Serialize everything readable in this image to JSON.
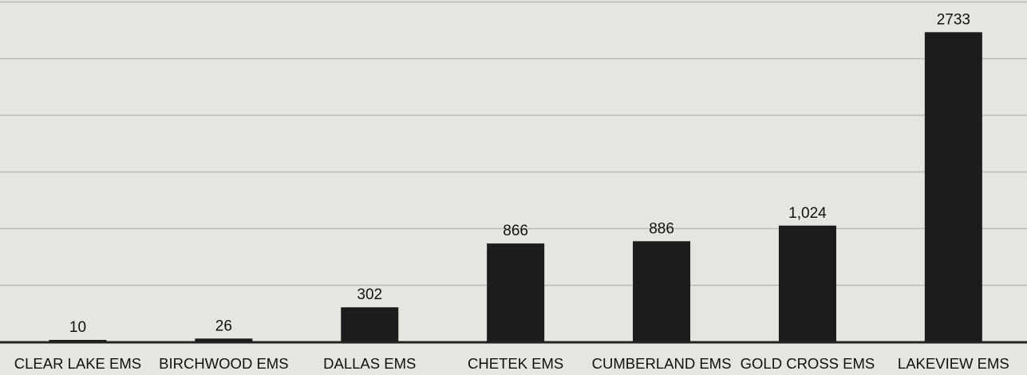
{
  "chart_data": {
    "type": "bar",
    "title": "",
    "xlabel": "",
    "ylabel": "",
    "categories": [
      "CLEAR LAKE EMS",
      "BIRCHWOOD EMS",
      "DALLAS EMS",
      "CHETEK EMS",
      "CUMBERLAND EMS",
      "GOLD CROSS EMS",
      "LAKEVIEW EMS"
    ],
    "values": [
      10,
      26,
      302,
      866,
      886,
      1024,
      2733
    ],
    "data_labels": [
      "10",
      "26",
      "302",
      "866",
      "886",
      "1,024",
      "2733"
    ],
    "ylim": [
      0,
      3000
    ],
    "gridline_step": 500,
    "grid": true,
    "legend": "none",
    "colors": {
      "bar": "#1c1c1c",
      "grid": "#bdbcb6",
      "axis": "#222222",
      "background": "#e6e5e0",
      "text": "#111111"
    }
  }
}
